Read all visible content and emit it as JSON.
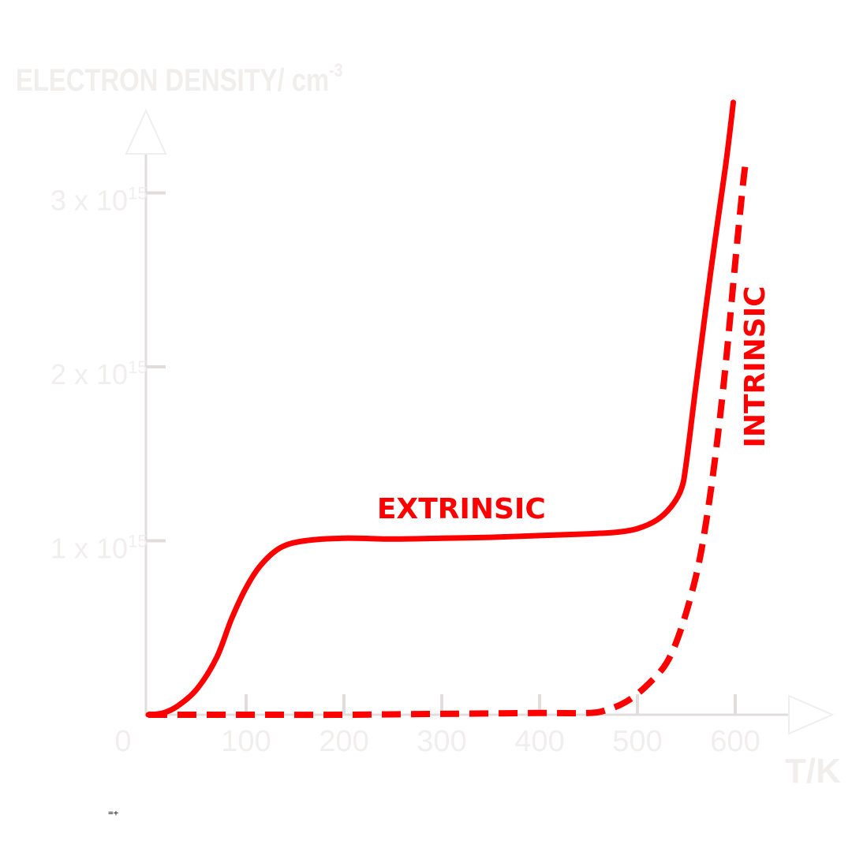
{
  "chart_data": {
    "type": "line",
    "title": "",
    "ylabel": "ELECTRON DENSITY/ cm",
    "ylabel_sup": "-3",
    "xlabel": "T/K",
    "xlim": [
      0,
      650
    ],
    "ylim": [
      0,
      3.3
    ],
    "y_unit_note": "values in units of 10^15 cm^-3",
    "x_ticks": [
      {
        "value": 0,
        "label": "0"
      },
      {
        "value": 100,
        "label": "100"
      },
      {
        "value": 200,
        "label": "200"
      },
      {
        "value": 300,
        "label": "300"
      },
      {
        "value": 400,
        "label": "400"
      },
      {
        "value": 500,
        "label": "500"
      },
      {
        "value": 600,
        "label": "600"
      }
    ],
    "y_ticks": [
      {
        "value": 1,
        "base": "1 x 10",
        "exp": "15"
      },
      {
        "value": 2,
        "base": "2 x 10",
        "exp": "15"
      },
      {
        "value": 3,
        "base": "3 x 10",
        "exp": "15"
      }
    ],
    "grid": false,
    "legend": "none",
    "series": [
      {
        "name": "EXTRINSIC",
        "style": "solid",
        "color": "#ff0000",
        "points": [
          [
            0,
            0
          ],
          [
            15,
            0.01
          ],
          [
            30,
            0.05
          ],
          [
            50,
            0.15
          ],
          [
            70,
            0.33
          ],
          [
            85,
            0.55
          ],
          [
            100,
            0.73
          ],
          [
            115,
            0.86
          ],
          [
            135,
            0.96
          ],
          [
            160,
            1.0
          ],
          [
            200,
            1.015
          ],
          [
            250,
            1.01
          ],
          [
            300,
            1.015
          ],
          [
            350,
            1.02
          ],
          [
            400,
            1.03
          ],
          [
            450,
            1.04
          ],
          [
            480,
            1.05
          ],
          [
            500,
            1.07
          ],
          [
            520,
            1.12
          ],
          [
            535,
            1.2
          ],
          [
            545,
            1.3
          ],
          [
            550,
            1.45
          ],
          [
            560,
            1.9
          ],
          [
            575,
            2.55
          ],
          [
            590,
            3.15
          ],
          [
            598,
            3.52
          ]
        ]
      },
      {
        "name": "INTRINSIC",
        "style": "dashed",
        "color": "#ff0000",
        "points": [
          [
            0,
            0
          ],
          [
            100,
            0
          ],
          [
            200,
            0
          ],
          [
            300,
            0.005
          ],
          [
            400,
            0.01
          ],
          [
            450,
            0.01
          ],
          [
            470,
            0.03
          ],
          [
            490,
            0.08
          ],
          [
            510,
            0.17
          ],
          [
            530,
            0.3
          ],
          [
            545,
            0.5
          ],
          [
            560,
            0.8
          ],
          [
            570,
            1.1
          ],
          [
            580,
            1.5
          ],
          [
            590,
            2.0
          ],
          [
            600,
            2.6
          ],
          [
            607,
            3.0
          ],
          [
            610,
            3.15
          ]
        ]
      }
    ],
    "annotations": [
      {
        "text": "EXTRINSIC",
        "series": "EXTRINSIC",
        "x": 320,
        "y": 1.13,
        "rotation": 0
      },
      {
        "text": "INTRINSIC",
        "series": "INTRINSIC",
        "x": 630,
        "y": 2.0,
        "rotation": -90
      }
    ]
  },
  "footnote": "=+"
}
